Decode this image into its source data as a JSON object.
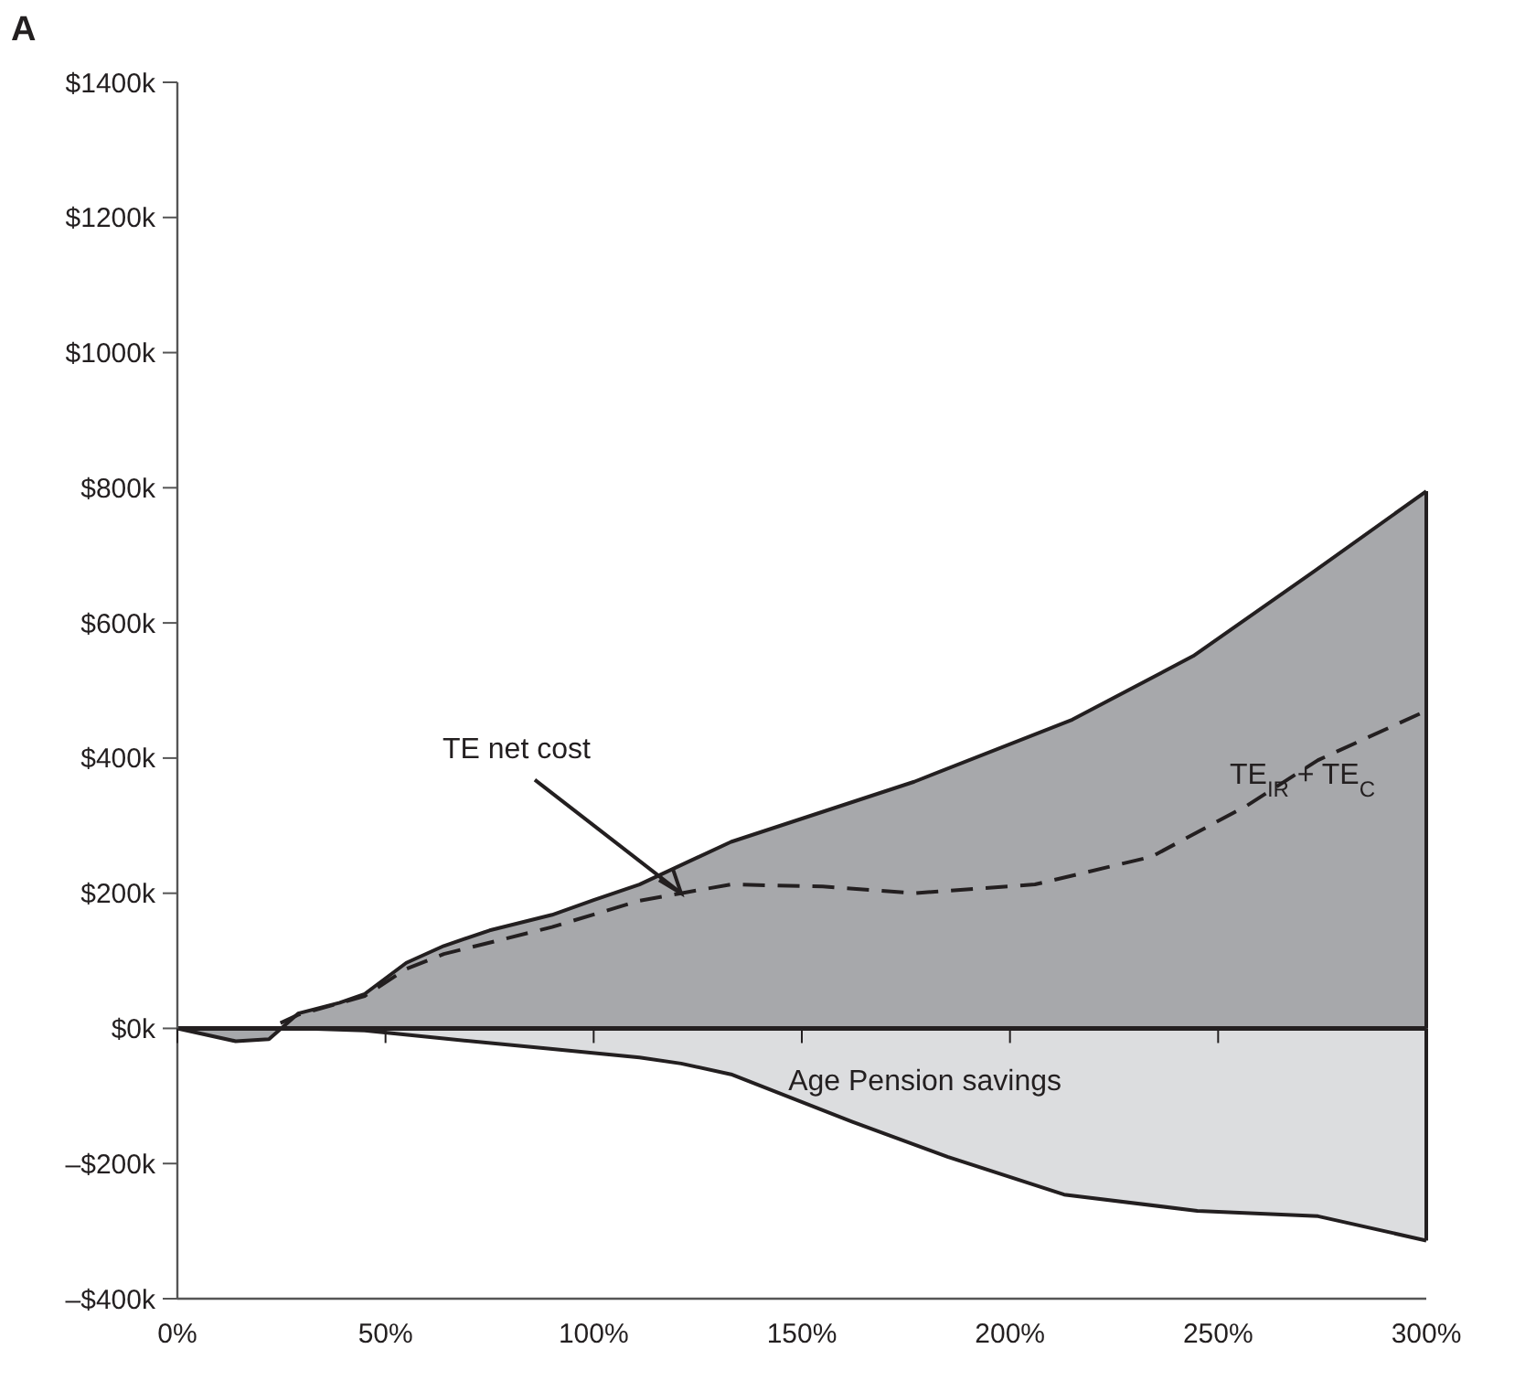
{
  "chart_data": {
    "type": "area",
    "title": "A",
    "xlim": [
      0,
      300
    ],
    "xticks": [
      {
        "value": 0,
        "label": "0%"
      },
      {
        "value": 50,
        "label": "50%"
      },
      {
        "value": 100,
        "label": "100%"
      },
      {
        "value": 150,
        "label": "150%"
      },
      {
        "value": 200,
        "label": "200%"
      },
      {
        "value": 250,
        "label": "250%"
      },
      {
        "value": 300,
        "label": "300%"
      }
    ],
    "ylim": [
      -400,
      1400
    ],
    "yticks": [
      {
        "value": -400,
        "label": "–$400k"
      },
      {
        "value": -200,
        "label": "–$200k"
      },
      {
        "value": 0,
        "label": "$0k"
      },
      {
        "value": 200,
        "label": "$200k"
      },
      {
        "value": 400,
        "label": "$400k"
      },
      {
        "value": 600,
        "label": "$600k"
      },
      {
        "value": 800,
        "label": "$800k"
      },
      {
        "value": 1000,
        "label": "$1000k"
      },
      {
        "value": 1200,
        "label": "$1200k"
      },
      {
        "value": 1400,
        "label": "$1400k"
      }
    ],
    "series": [
      {
        "name": "TE$_{IR}$ + TE$_{C}$",
        "color": "#a7a8ab",
        "x": [
          0,
          14,
          22,
          29,
          39,
          45,
          55,
          64,
          75,
          90,
          100,
          111,
          133,
          177,
          215,
          244,
          273,
          300
        ],
        "values": [
          0,
          -19,
          -16,
          22,
          38,
          51,
          97,
          122,
          145,
          168,
          190,
          213,
          276,
          365,
          457,
          551,
          676,
          795
        ]
      },
      {
        "name": "Age Pension savings",
        "color": "#dcdddf",
        "x": [
          0,
          30,
          45,
          64,
          89,
          111,
          121,
          133,
          162,
          185,
          213,
          245,
          274,
          300
        ],
        "values": [
          0,
          0,
          -3,
          -15,
          -30,
          -43,
          -52,
          -68,
          -138,
          -190,
          -246,
          -270,
          -278,
          -314
        ]
      },
      {
        "type": "line",
        "line_style": "dashed",
        "color": "#231f20",
        "x": [
          0,
          22,
          29,
          45,
          55,
          64,
          90,
          111,
          121,
          133,
          155,
          177,
          206,
          234,
          257,
          274,
          300
        ],
        "values": [
          0,
          0,
          20,
          48,
          88,
          110,
          150,
          189,
          200,
          213,
          210,
          200,
          213,
          254,
          330,
          397,
          470
        ]
      }
    ],
    "annotations": [
      {
        "text": "TE net cost",
        "x": 121,
        "y": 200
      }
    ]
  }
}
